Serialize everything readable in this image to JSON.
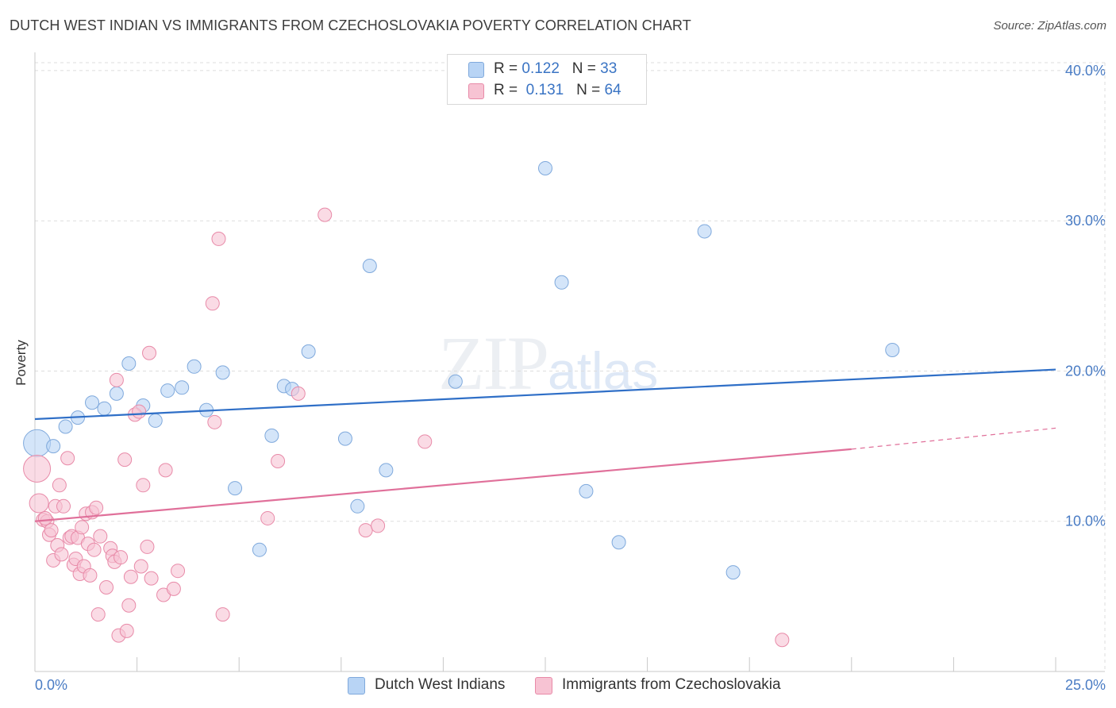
{
  "title": "DUTCH WEST INDIAN VS IMMIGRANTS FROM CZECHOSLOVAKIA POVERTY CORRELATION CHART",
  "source": "Source: ZipAtlas.com",
  "watermark": {
    "zip": "ZIP",
    "atlas": "atlas"
  },
  "legend": {
    "rows": [
      {
        "r_label": "R =",
        "r_value": "0.122",
        "n_label": "N =",
        "n_value": "33"
      },
      {
        "r_label": "R =",
        "r_value": "0.131",
        "n_label": "N =",
        "n_value": "64"
      }
    ]
  },
  "colors": {
    "blue_fill": "#b8d4f5",
    "blue_stroke": "#7fa9dc",
    "blue_line": "#2f6fc7",
    "pink_fill": "#f7c3d3",
    "pink_stroke": "#e88aa8",
    "pink_line": "#e0709a",
    "grid": "#dddddd",
    "tick_text": "#4a7cc4"
  },
  "chart_data": {
    "type": "scatter",
    "title": "DUTCH WEST INDIAN VS IMMIGRANTS FROM CZECHOSLOVAKIA POVERTY CORRELATION CHART",
    "xlabel": "",
    "ylabel": "Poverty",
    "xlim": [
      0,
      25
    ],
    "ylim": [
      0,
      41
    ],
    "x_tick_labels": [
      "0.0%",
      "25.0%"
    ],
    "y_ticks": [
      10,
      20,
      30,
      40
    ],
    "y_tick_labels": [
      "10.0%",
      "20.0%",
      "30.0%",
      "40.0%"
    ],
    "grid": true,
    "series": [
      {
        "name": "Dutch West Indians",
        "color": "#b8d4f5",
        "trend": {
          "x": [
            0,
            25
          ],
          "y": [
            16.8,
            20.1
          ]
        },
        "points": [
          {
            "x": 0.05,
            "y": 15.2,
            "big": true
          },
          {
            "x": 0.45,
            "y": 15.0
          },
          {
            "x": 0.75,
            "y": 16.3
          },
          {
            "x": 1.05,
            "y": 16.9
          },
          {
            "x": 1.4,
            "y": 17.9
          },
          {
            "x": 1.7,
            "y": 17.5
          },
          {
            "x": 2.0,
            "y": 18.5
          },
          {
            "x": 2.3,
            "y": 20.5
          },
          {
            "x": 2.65,
            "y": 17.7
          },
          {
            "x": 2.95,
            "y": 16.7
          },
          {
            "x": 3.25,
            "y": 18.7
          },
          {
            "x": 3.6,
            "y": 18.9
          },
          {
            "x": 3.9,
            "y": 20.3
          },
          {
            "x": 4.2,
            "y": 17.4
          },
          {
            "x": 4.6,
            "y": 19.9
          },
          {
            "x": 4.9,
            "y": 12.2
          },
          {
            "x": 5.5,
            "y": 8.1
          },
          {
            "x": 5.8,
            "y": 15.7
          },
          {
            "x": 6.1,
            "y": 19.0
          },
          {
            "x": 6.3,
            "y": 18.8
          },
          {
            "x": 6.7,
            "y": 21.3
          },
          {
            "x": 7.6,
            "y": 15.5
          },
          {
            "x": 7.9,
            "y": 11.0
          },
          {
            "x": 8.2,
            "y": 27.0
          },
          {
            "x": 8.6,
            "y": 13.4
          },
          {
            "x": 10.3,
            "y": 19.3
          },
          {
            "x": 12.5,
            "y": 33.5
          },
          {
            "x": 12.9,
            "y": 25.9
          },
          {
            "x": 13.5,
            "y": 12.0
          },
          {
            "x": 14.3,
            "y": 8.6
          },
          {
            "x": 16.4,
            "y": 29.3
          },
          {
            "x": 17.1,
            "y": 6.6
          },
          {
            "x": 21.0,
            "y": 21.4
          }
        ]
      },
      {
        "name": "Immigrants from Czechoslovakia",
        "color": "#f7c3d3",
        "trend": {
          "x": [
            0,
            20
          ],
          "y": [
            10.0,
            14.8
          ]
        },
        "trend_dashed": {
          "x": [
            20,
            25
          ],
          "y": [
            14.8,
            16.2
          ]
        },
        "points": [
          {
            "x": 0.05,
            "y": 13.5,
            "big": true
          },
          {
            "x": 0.1,
            "y": 11.2,
            "mid": true
          },
          {
            "x": 0.2,
            "y": 10.1
          },
          {
            "x": 0.3,
            "y": 10.0
          },
          {
            "x": 0.35,
            "y": 9.1
          },
          {
            "x": 0.4,
            "y": 9.4
          },
          {
            "x": 0.45,
            "y": 7.4
          },
          {
            "x": 0.5,
            "y": 11.0
          },
          {
            "x": 0.55,
            "y": 8.4
          },
          {
            "x": 0.6,
            "y": 12.4
          },
          {
            "x": 0.65,
            "y": 7.8
          },
          {
            "x": 0.7,
            "y": 11.0
          },
          {
            "x": 0.8,
            "y": 14.2
          },
          {
            "x": 0.85,
            "y": 8.9
          },
          {
            "x": 0.9,
            "y": 9.0
          },
          {
            "x": 0.95,
            "y": 7.1
          },
          {
            "x": 1.0,
            "y": 7.5
          },
          {
            "x": 1.05,
            "y": 8.9
          },
          {
            "x": 1.1,
            "y": 6.5
          },
          {
            "x": 1.15,
            "y": 9.6
          },
          {
            "x": 1.2,
            "y": 7.0
          },
          {
            "x": 1.25,
            "y": 10.5
          },
          {
            "x": 1.3,
            "y": 8.5
          },
          {
            "x": 1.35,
            "y": 6.4
          },
          {
            "x": 1.4,
            "y": 10.6
          },
          {
            "x": 1.45,
            "y": 8.1
          },
          {
            "x": 1.5,
            "y": 10.9
          },
          {
            "x": 1.55,
            "y": 3.8
          },
          {
            "x": 1.6,
            "y": 9.0
          },
          {
            "x": 1.75,
            "y": 5.6
          },
          {
            "x": 1.85,
            "y": 8.2
          },
          {
            "x": 1.9,
            "y": 7.7
          },
          {
            "x": 1.95,
            "y": 7.3
          },
          {
            "x": 2.0,
            "y": 19.4
          },
          {
            "x": 2.05,
            "y": 2.4
          },
          {
            "x": 2.1,
            "y": 7.6
          },
          {
            "x": 2.2,
            "y": 14.1
          },
          {
            "x": 2.25,
            "y": 2.7
          },
          {
            "x": 2.3,
            "y": 4.4
          },
          {
            "x": 2.35,
            "y": 6.3
          },
          {
            "x": 2.45,
            "y": 17.1
          },
          {
            "x": 2.55,
            "y": 17.3
          },
          {
            "x": 2.6,
            "y": 7.0
          },
          {
            "x": 2.65,
            "y": 12.4
          },
          {
            "x": 2.75,
            "y": 8.3
          },
          {
            "x": 2.8,
            "y": 21.2
          },
          {
            "x": 2.85,
            "y": 6.2
          },
          {
            "x": 3.15,
            "y": 5.1
          },
          {
            "x": 3.2,
            "y": 13.4
          },
          {
            "x": 3.4,
            "y": 5.5
          },
          {
            "x": 3.5,
            "y": 6.7
          },
          {
            "x": 4.35,
            "y": 24.5
          },
          {
            "x": 4.4,
            "y": 16.6
          },
          {
            "x": 4.5,
            "y": 28.8
          },
          {
            "x": 4.6,
            "y": 3.8
          },
          {
            "x": 5.7,
            "y": 10.2
          },
          {
            "x": 5.95,
            "y": 14.0
          },
          {
            "x": 6.45,
            "y": 18.5
          },
          {
            "x": 7.1,
            "y": 30.4
          },
          {
            "x": 8.1,
            "y": 9.4
          },
          {
            "x": 8.4,
            "y": 9.7
          },
          {
            "x": 9.55,
            "y": 15.3
          },
          {
            "x": 18.3,
            "y": 2.1
          },
          {
            "x": 0.25,
            "y": 10.2
          }
        ]
      }
    ]
  }
}
